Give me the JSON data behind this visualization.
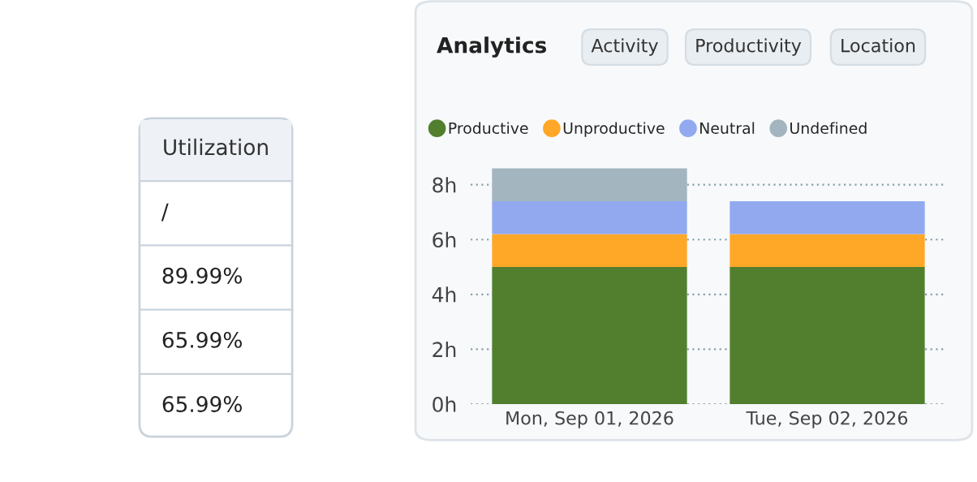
{
  "chart_data": [
    {
      "type": "other",
      "title": "Utilization",
      "annotations": [
        "/",
        "89.99%",
        "65.99%",
        "65.99%"
      ]
    },
    {
      "type": "bar",
      "title": "Analytics",
      "annotations": [
        "Activity",
        "Productivity",
        "Location"
      ],
      "stacked": true,
      "categories": [
        "Mon, Sep 01, 2026",
        "Tue, Sep 02, 2026"
      ],
      "series": [
        {
          "name": "Productive",
          "color": "#527f2e",
          "values": [
            5.0,
            5.0
          ]
        },
        {
          "name": "Unproductive",
          "color": "#ffa726",
          "values": [
            1.2,
            1.2
          ]
        },
        {
          "name": "Neutral",
          "color": "#92a9f0",
          "values": [
            1.2,
            1.2
          ]
        },
        {
          "name": "Undefined",
          "color": "#a3b5be",
          "values": [
            1.2,
            null
          ]
        }
      ],
      "ylim": [
        0,
        8.7
      ],
      "yticks": [
        {
          "value": 0,
          "label": "0h"
        },
        {
          "value": 2,
          "label": "2h"
        },
        {
          "value": 4,
          "label": "4h"
        },
        {
          "value": 6,
          "label": "6h"
        },
        {
          "value": 8,
          "label": "8h"
        }
      ],
      "grid": "y",
      "legend": "top"
    }
  ]
}
